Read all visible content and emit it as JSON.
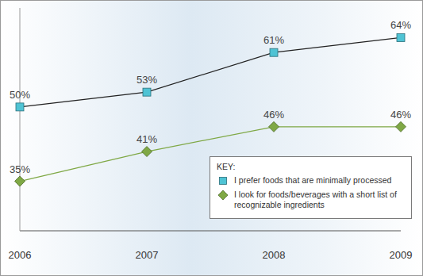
{
  "chart_data": {
    "type": "line",
    "categories": [
      "2006",
      "2007",
      "2008",
      "2009"
    ],
    "series": [
      {
        "name": "I prefer foods that are minimally processed",
        "color": "#4fc3d4",
        "marker": "square",
        "values": [
          50,
          53,
          61,
          64
        ],
        "value_labels": [
          "50%",
          "53%",
          "61%",
          "64%"
        ]
      },
      {
        "name": "I look for foods/beverages with a short list of recognizable ingredients",
        "color": "#7fa845",
        "marker": "diamond",
        "values": [
          35,
          41,
          46,
          46
        ],
        "value_labels": [
          "35%",
          "41%",
          "46%",
          "46%"
        ]
      }
    ],
    "ylim": [
      25,
      70
    ],
    "tick_labels": "x",
    "legend": "lower right",
    "legend_title": "KEY:",
    "data_labels": true
  }
}
